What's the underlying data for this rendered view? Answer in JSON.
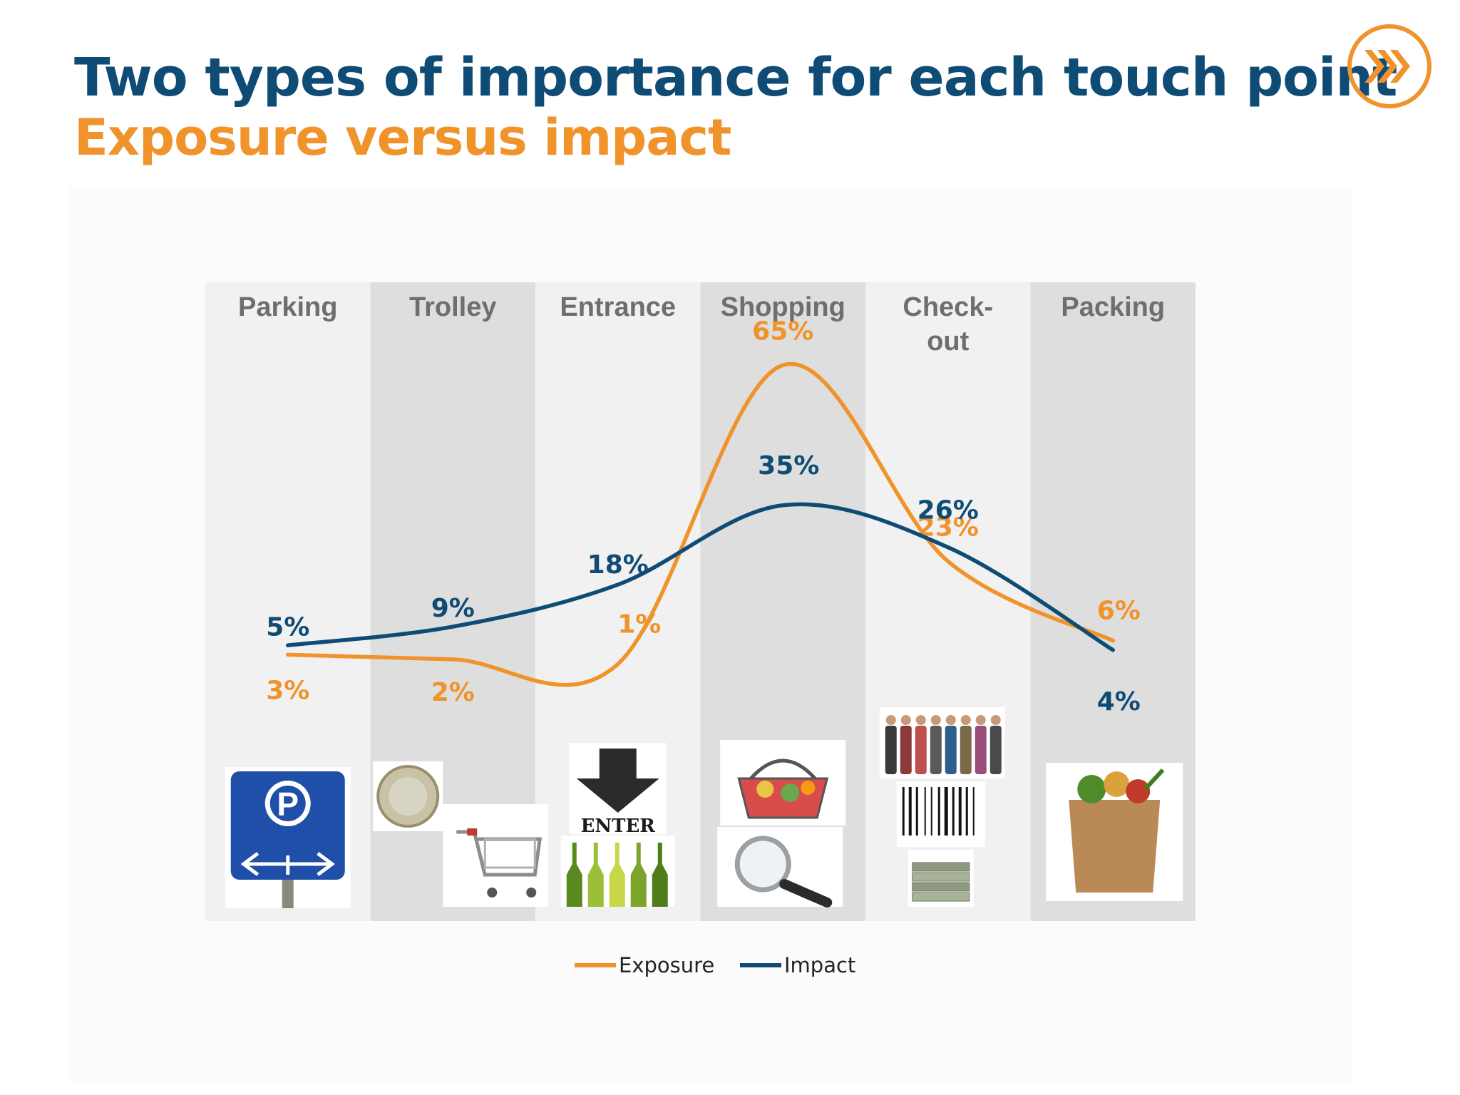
{
  "slide": {
    "title": "Two types of importance for each touch point",
    "subtitle": "Exposure versus impact",
    "logo_icon": "fast-forward-chevrons-icon",
    "colors": {
      "title": "#0f4c75",
      "subtitle": "#f0932b",
      "band_light": "#f1f1f1",
      "band_dark": "#dedede"
    }
  },
  "chart_data": {
    "type": "line",
    "categories": [
      "Parking",
      "Trolley",
      "Entrance",
      "Shopping",
      "Check-out",
      "Packing"
    ],
    "category_display": [
      [
        "Parking"
      ],
      [
        "Trolley"
      ],
      [
        "Entrance"
      ],
      [
        "Shopping"
      ],
      [
        "Check-",
        "out"
      ],
      [
        "Packing"
      ]
    ],
    "series": [
      {
        "name": "Exposure",
        "color": "#f0932b",
        "values": [
          3,
          2,
          1,
          65,
          23,
          6
        ],
        "labels": [
          "3%",
          "2%",
          "1%",
          "65%",
          "23%",
          "6%"
        ]
      },
      {
        "name": "Impact",
        "color": "#0f4c75",
        "values": [
          5,
          9,
          18,
          35,
          26,
          4
        ],
        "labels": [
          "5%",
          "9%",
          "18%",
          "35%",
          "26%",
          "4%"
        ]
      }
    ],
    "smooth": true,
    "legend": "bottom-center",
    "grid": false,
    "category_icons": [
      [
        "parking-sign-icon"
      ],
      [
        "euro-coin-icon",
        "shopping-cart-icon"
      ],
      [
        "enter-arrow-icon",
        "wine-bottles-icon"
      ],
      [
        "shopping-basket-icon",
        "magnifying-glass-icon"
      ],
      [
        "crowd-queue-icon",
        "barcode-icon",
        "cash-stack-icon"
      ],
      [
        "grocery-bag-icon"
      ]
    ]
  }
}
